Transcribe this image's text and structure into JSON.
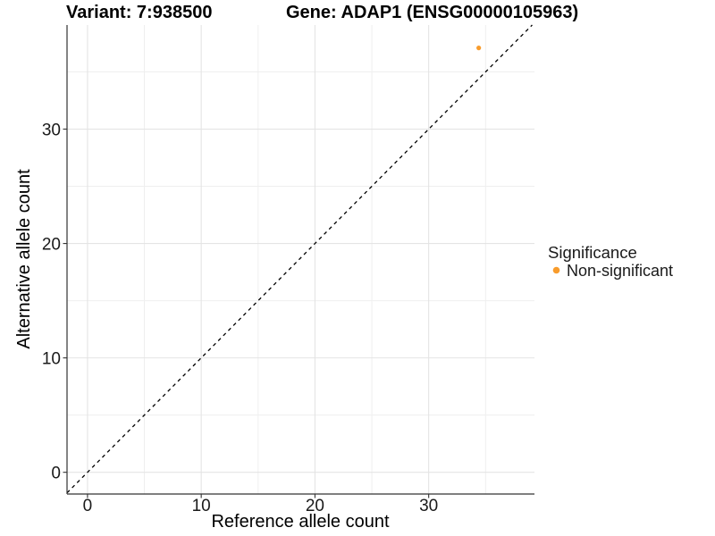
{
  "chart_data": {
    "type": "scatter",
    "titles": {
      "left": "Variant: 7:938500",
      "right": "Gene: ADAP1 (ENSG00000105963)"
    },
    "xlabel": "Reference allele count",
    "ylabel": "Alternative allele count",
    "xlim": [
      -1.8,
      39.3
    ],
    "ylim": [
      -1.9,
      39.1
    ],
    "xticks": [
      0,
      10,
      20,
      30
    ],
    "yticks": [
      0,
      10,
      20,
      30
    ],
    "xminor": [
      5,
      15,
      25,
      35
    ],
    "yminor": [
      5,
      15,
      25,
      35
    ],
    "grid": {
      "on": true,
      "major_color": "#e4e4e4",
      "minor_color": "#efefef"
    },
    "identity_line": {
      "type": "dashed",
      "color": "#000000",
      "dash": [
        4,
        4
      ]
    },
    "series": [
      {
        "name": "Non-significant",
        "color": "#F89C2C",
        "point_radius": 2.6,
        "points": [
          {
            "x": 34.4,
            "y": 37.1
          }
        ]
      }
    ],
    "legend": {
      "title": "Significance",
      "position": "right",
      "items": [
        {
          "label": "Non-significant",
          "color": "#F89C2C"
        }
      ]
    },
    "axis_color": "#333333",
    "tick_color": "#333333",
    "text_color": "#1a1a1a"
  }
}
